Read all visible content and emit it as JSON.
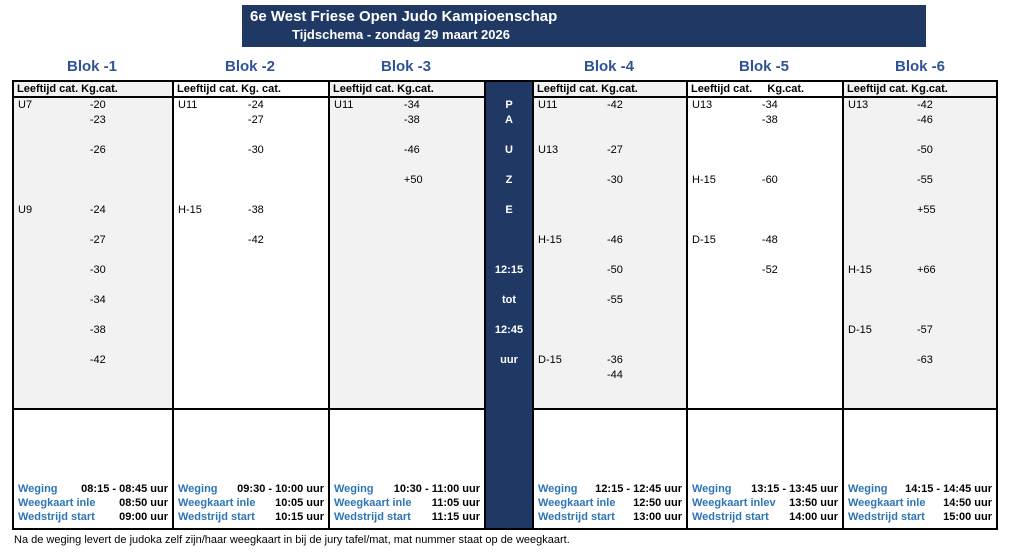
{
  "banner": {
    "title": "6e West Friese Open Judo Kampioenschap",
    "subtitle": "Tijdschema - zondag 29 maart 2026"
  },
  "colors": {
    "navy": "#1F3864",
    "blok_blue": "#2F5496",
    "label_blue": "#2E75B6",
    "light_gray": "#F2F2F2"
  },
  "pause": {
    "rows": [
      {
        "row": 1,
        "text": "P"
      },
      {
        "row": 2,
        "text": "A"
      },
      {
        "row": 4,
        "text": "U"
      },
      {
        "row": 6,
        "text": "Z"
      },
      {
        "row": 8,
        "text": "E"
      },
      {
        "row": 12,
        "text": "12:15"
      },
      {
        "row": 14,
        "text": "tot"
      },
      {
        "row": 16,
        "text": "12:45"
      },
      {
        "row": 18,
        "text": "uur"
      }
    ]
  },
  "blocks": [
    {
      "name": "Blok -1",
      "shaded": true,
      "col_header": "Leeftijd cat. Kg.cat.",
      "entries": [
        {
          "row": 1,
          "age": "U7",
          "kg": "-20"
        },
        {
          "row": 2,
          "kg": "-23"
        },
        {
          "row": 4,
          "kg": "-26"
        },
        {
          "row": 8,
          "age": "U9",
          "kg": "-24"
        },
        {
          "row": 10,
          "kg": "-27"
        },
        {
          "row": 12,
          "kg": "-30"
        },
        {
          "row": 14,
          "kg": "-34"
        },
        {
          "row": 16,
          "kg": "-38"
        },
        {
          "row": 18,
          "kg": "-42"
        }
      ],
      "times": [
        {
          "label": "Weging",
          "value": "08:15 - 08:45 uur"
        },
        {
          "label": "Weegkaart inle",
          "value": "08:50 uur"
        },
        {
          "label": "Wedstrijd start",
          "value": "09:00 uur"
        }
      ]
    },
    {
      "name": "Blok -2",
      "shaded": false,
      "col_header": "Leeftijd cat. Kg. cat.",
      "entries": [
        {
          "row": 1,
          "age": "U11",
          "kg": "-24"
        },
        {
          "row": 2,
          "kg": "-27"
        },
        {
          "row": 4,
          "kg": "-30"
        },
        {
          "row": 8,
          "age": "H-15",
          "kg": "-38"
        },
        {
          "row": 10,
          "kg": "-42"
        }
      ],
      "times": [
        {
          "label": "Weging",
          "value": "09:30 - 10:00 uur"
        },
        {
          "label": "Weegkaart inle",
          "value": "10:05 uur"
        },
        {
          "label": "Wedstrijd start",
          "value": "10:15 uur"
        }
      ]
    },
    {
      "name": "Blok -3",
      "shaded": true,
      "col_header": "Leeftijd cat. Kg.cat.",
      "entries": [
        {
          "row": 1,
          "age": "U11",
          "kg": "-34"
        },
        {
          "row": 2,
          "kg": "-38"
        },
        {
          "row": 4,
          "kg": "-46"
        },
        {
          "row": 6,
          "kg": "+50"
        }
      ],
      "times": [
        {
          "label": "Weging",
          "value": "10:30 - 11:00 uur"
        },
        {
          "label": "Weegkaart inle",
          "value": "11:05 uur"
        },
        {
          "label": "Wedstrijd start",
          "value": "11:15 uur"
        }
      ]
    },
    {
      "name": "Blok -4",
      "shaded": true,
      "col_header": "Leeftijd cat. Kg.cat.",
      "entries": [
        {
          "row": 1,
          "age": "U11",
          "kg": "-42"
        },
        {
          "row": 4,
          "age": "U13",
          "kg": "-27"
        },
        {
          "row": 6,
          "kg": "-30"
        },
        {
          "row": 10,
          "age": "H-15",
          "kg": "-46"
        },
        {
          "row": 12,
          "kg": "-50"
        },
        {
          "row": 14,
          "kg": "-55"
        },
        {
          "row": 18,
          "age": "D-15",
          "kg": "-36"
        },
        {
          "row": 19,
          "kg": "-44"
        }
      ],
      "times": [
        {
          "label": "Weging",
          "value": "12:15 - 12:45 uur"
        },
        {
          "label": "Weegkaart inle",
          "value": "12:50 uur"
        },
        {
          "label": "Wedstrijd start",
          "value": "13:00 uur"
        }
      ]
    },
    {
      "name": "Blok -5",
      "shaded": false,
      "col_header": "Leeftijd cat.     Kg.cat.",
      "entries": [
        {
          "row": 1,
          "age": "U13",
          "kg": "-34"
        },
        {
          "row": 2,
          "kg": "-38"
        },
        {
          "row": 6,
          "age": "H-15",
          "kg": "-60"
        },
        {
          "row": 10,
          "age": "D-15",
          "kg": "-48"
        },
        {
          "row": 12,
          "kg": "-52"
        }
      ],
      "times": [
        {
          "label": "Weging",
          "value": "13:15 - 13:45 uur"
        },
        {
          "label": "Weegkaart inlev",
          "value": "13:50 uur"
        },
        {
          "label": "Wedstrijd start",
          "value": "14:00 uur"
        }
      ]
    },
    {
      "name": "Blok -6",
      "shaded": true,
      "col_header": "Leeftijd cat. Kg.cat.",
      "entries": [
        {
          "row": 1,
          "age": "U13",
          "kg": "-42"
        },
        {
          "row": 2,
          "kg": "-46"
        },
        {
          "row": 4,
          "kg": "-50"
        },
        {
          "row": 6,
          "kg": "-55"
        },
        {
          "row": 8,
          "kg": "+55"
        },
        {
          "row": 12,
          "age": "H-15",
          "kg": "+66"
        },
        {
          "row": 16,
          "age": "D-15",
          "kg": "-57"
        },
        {
          "row": 18,
          "kg": "-63"
        }
      ],
      "times": [
        {
          "label": "Weging",
          "value": "14:15 - 14:45 uur"
        },
        {
          "label": "Weegkaart inle",
          "value": "14:50 uur"
        },
        {
          "label": "Wedstrijd start",
          "value": "15:00 uur"
        }
      ]
    }
  ],
  "footnote": "Na de weging levert de judoka zelf zijn/haar weegkaart in bij de jury tafel/mat, mat nummer staat op de weegkaart."
}
